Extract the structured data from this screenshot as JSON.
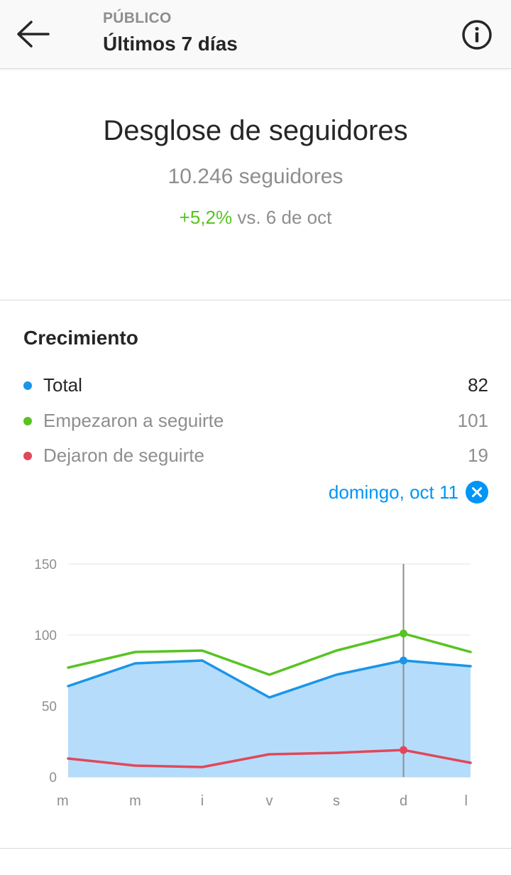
{
  "header": {
    "subtitle": "PÚBLICO",
    "title": "Últimos 7 días",
    "back_icon": "arrow-left-icon",
    "info_icon": "info-circle-icon"
  },
  "summary": {
    "title": "Desglose de seguidores",
    "followers": "10.246 seguidores",
    "change_percent": "+5,2%",
    "change_suffix": " vs. 6 de oct"
  },
  "growth": {
    "title": "Crecimiento",
    "legend": [
      {
        "label": "Total",
        "value": "82",
        "color": "#1a95e8"
      },
      {
        "label": "Empezaron a seguirte",
        "value": "101",
        "color": "#58c322"
      },
      {
        "label": "Dejaron de seguirte",
        "value": "19",
        "color": "#e0485a"
      }
    ],
    "selected_date": "domingo, oct 11",
    "clear_icon": "close-circle-icon"
  },
  "colors": {
    "accent": "#0095f6",
    "positive": "#58c322",
    "total": "#1a95e8",
    "area_fill": "#b6dcfb",
    "unfollow": "#e0485a"
  },
  "chart_data": {
    "type": "line",
    "categories": [
      "m",
      "m",
      "i",
      "v",
      "s",
      "d",
      "l"
    ],
    "ylim": [
      0,
      150
    ],
    "yticks": [
      "150",
      "100",
      "50",
      "0"
    ],
    "ytick_values": [
      150,
      100,
      50,
      0
    ],
    "grid": true,
    "selected_index": 5,
    "series": [
      {
        "name": "Empezaron a seguirte",
        "color": "#58c322",
        "values": [
          77,
          88,
          89,
          72,
          89,
          101,
          88
        ]
      },
      {
        "name": "Total",
        "color": "#1a95e8",
        "fill": "#b6dcfb",
        "values": [
          64,
          80,
          82,
          56,
          72,
          82,
          78
        ]
      },
      {
        "name": "Dejaron de seguirte",
        "color": "#e0485a",
        "values": [
          13,
          8,
          7,
          16,
          17,
          19,
          10
        ]
      }
    ]
  }
}
